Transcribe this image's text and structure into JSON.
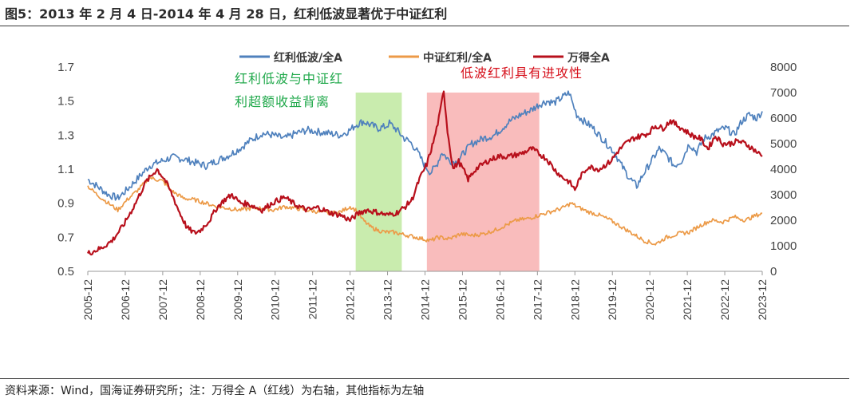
{
  "header": {
    "figure_title": "图5：2013 年 2 月 4 日-2014 年 4 月 28 日，红利低波显著优于中证红利"
  },
  "footer": {
    "source_note": "资料来源：Wind，国海证券研究所；注：万得全 A（红线）为右轴，其他指标为左轴"
  },
  "chart_data": {
    "type": "line",
    "x_ticks": [
      "2005-12",
      "2006-12",
      "2007-12",
      "2008-12",
      "2009-12",
      "2010-12",
      "2011-12",
      "2012-12",
      "2013-12",
      "2014-12",
      "2015-12",
      "2016-12",
      "2017-12",
      "2018-12",
      "2019-12",
      "2020-12",
      "2021-12",
      "2022-12",
      "2023-12"
    ],
    "y_left": {
      "min": 0.5,
      "max": 1.7,
      "ticks": [
        "0.5",
        "0.7",
        "0.9",
        "1.1",
        "1.3",
        "1.5",
        "1.7"
      ]
    },
    "y_right": {
      "min": 0,
      "max": 8000,
      "ticks": [
        "0",
        "1000",
        "2000",
        "3000",
        "4000",
        "5000",
        "6000",
        "7000",
        "8000"
      ]
    },
    "legend_position": "top-center",
    "colors": {
      "dividend_low_vol": "#4f81bd",
      "csi_dividend": "#ec9a47",
      "wind_all_a": "#b8101c",
      "green_band": "#c9ecae",
      "red_band": "#f9bcbc"
    },
    "series": [
      {
        "name": "红利低波/全A",
        "axis": "left",
        "x": [
          2005.95,
          2006.2,
          2006.5,
          2006.75,
          2007.0,
          2007.3,
          2007.6,
          2007.95,
          2008.2,
          2008.5,
          2008.8,
          2009.1,
          2009.4,
          2009.7,
          2010.0,
          2010.3,
          2010.6,
          2010.9,
          2011.2,
          2011.5,
          2011.8,
          2012.1,
          2012.4,
          2012.7,
          2012.95,
          2013.1,
          2013.3,
          2013.5,
          2013.7,
          2013.9,
          2014.0,
          2014.2,
          2014.4,
          2014.55,
          2014.7,
          2014.8,
          2014.95,
          2015.1,
          2015.25,
          2015.4,
          2015.6,
          2015.8,
          2016.0,
          2016.2,
          2016.5,
          2016.8,
          2017.0,
          2017.2,
          2017.5,
          2017.8,
          2018.0,
          2018.2,
          2018.4,
          2018.6,
          2018.8,
          2018.9,
          2019.0,
          2019.2,
          2019.4,
          2019.6,
          2019.8,
          2020.0,
          2020.2,
          2020.4,
          2020.6,
          2020.8,
          2021.0,
          2021.2,
          2021.4,
          2021.6,
          2021.8,
          2022.0,
          2022.2,
          2022.4,
          2022.6,
          2022.8,
          2023.0,
          2023.2,
          2023.4,
          2023.6,
          2023.8,
          2023.95
        ],
        "values": [
          1.04,
          1.0,
          0.95,
          0.93,
          0.98,
          1.05,
          1.12,
          1.15,
          1.17,
          1.16,
          1.14,
          1.12,
          1.15,
          1.18,
          1.22,
          1.27,
          1.31,
          1.3,
          1.28,
          1.31,
          1.33,
          1.32,
          1.31,
          1.3,
          1.33,
          1.36,
          1.38,
          1.36,
          1.34,
          1.35,
          1.37,
          1.33,
          1.28,
          1.26,
          1.22,
          1.18,
          1.12,
          1.08,
          1.12,
          1.2,
          1.15,
          1.14,
          1.2,
          1.25,
          1.28,
          1.3,
          1.34,
          1.38,
          1.42,
          1.45,
          1.48,
          1.5,
          1.49,
          1.52,
          1.55,
          1.48,
          1.42,
          1.38,
          1.35,
          1.3,
          1.25,
          1.2,
          1.12,
          1.05,
          1.0,
          1.08,
          1.15,
          1.22,
          1.18,
          1.12,
          1.15,
          1.25,
          1.2,
          1.28,
          1.3,
          1.33,
          1.34,
          1.3,
          1.38,
          1.42,
          1.4,
          1.44
        ]
      },
      {
        "name": "中证红利/全A",
        "axis": "left",
        "x": [
          2005.95,
          2006.2,
          2006.5,
          2006.75,
          2007.0,
          2007.3,
          2007.6,
          2007.95,
          2008.2,
          2008.5,
          2008.8,
          2009.1,
          2009.4,
          2009.7,
          2010.0,
          2010.3,
          2010.6,
          2010.9,
          2011.2,
          2011.5,
          2011.8,
          2012.1,
          2012.4,
          2012.7,
          2012.95,
          2013.1,
          2013.3,
          2013.5,
          2013.7,
          2013.9,
          2014.1,
          2014.3,
          2014.5,
          2014.7,
          2014.9,
          2015.1,
          2015.3,
          2015.6,
          2015.9,
          2016.2,
          2016.5,
          2016.8,
          2017.1,
          2017.4,
          2017.7,
          2018.0,
          2018.3,
          2018.6,
          2018.85,
          2019.0,
          2019.3,
          2019.6,
          2019.9,
          2020.2,
          2020.5,
          2020.8,
          2021.1,
          2021.4,
          2021.7,
          2022.0,
          2022.3,
          2022.6,
          2022.9,
          2023.2,
          2023.5,
          2023.8,
          2023.95
        ],
        "values": [
          1.0,
          0.95,
          0.9,
          0.86,
          0.92,
          0.98,
          1.05,
          1.03,
          0.97,
          0.93,
          0.92,
          0.9,
          0.88,
          0.87,
          0.86,
          0.87,
          0.87,
          0.86,
          0.88,
          0.87,
          0.86,
          0.85,
          0.84,
          0.85,
          0.88,
          0.86,
          0.8,
          0.76,
          0.74,
          0.73,
          0.73,
          0.72,
          0.71,
          0.7,
          0.69,
          0.68,
          0.7,
          0.69,
          0.72,
          0.71,
          0.72,
          0.74,
          0.77,
          0.8,
          0.81,
          0.83,
          0.85,
          0.87,
          0.9,
          0.88,
          0.85,
          0.83,
          0.8,
          0.76,
          0.72,
          0.68,
          0.66,
          0.7,
          0.72,
          0.73,
          0.77,
          0.8,
          0.79,
          0.82,
          0.8,
          0.83,
          0.84
        ]
      },
      {
        "name": "万得全A",
        "axis": "right",
        "x": [
          2005.95,
          2006.3,
          2006.6,
          2006.9,
          2007.2,
          2007.5,
          2007.8,
          2008.0,
          2008.2,
          2008.4,
          2008.6,
          2008.8,
          2008.95,
          2009.2,
          2009.4,
          2009.6,
          2009.8,
          2010.0,
          2010.3,
          2010.6,
          2010.9,
          2011.2,
          2011.5,
          2011.8,
          2012.1,
          2012.4,
          2012.7,
          2012.95,
          2013.2,
          2013.4,
          2013.7,
          2013.95,
          2014.2,
          2014.4,
          2014.6,
          2014.8,
          2015.0,
          2015.2,
          2015.35,
          2015.45,
          2015.55,
          2015.7,
          2015.85,
          2016.0,
          2016.1,
          2016.3,
          2016.6,
          2016.9,
          2017.2,
          2017.5,
          2017.8,
          2018.0,
          2018.2,
          2018.4,
          2018.6,
          2018.8,
          2018.95,
          2019.1,
          2019.3,
          2019.6,
          2019.9,
          2020.1,
          2020.3,
          2020.5,
          2020.7,
          2020.9,
          2021.1,
          2021.3,
          2021.5,
          2021.7,
          2021.9,
          2022.1,
          2022.3,
          2022.5,
          2022.7,
          2022.9,
          2023.1,
          2023.3,
          2023.5,
          2023.7,
          2023.95
        ],
        "values": [
          700,
          900,
          1200,
          1800,
          2600,
          3500,
          4000,
          3600,
          3000,
          2300,
          1700,
          1500,
          1600,
          2000,
          2500,
          2800,
          3000,
          2700,
          2600,
          2400,
          2700,
          2900,
          2600,
          2400,
          2500,
          2300,
          2200,
          2000,
          2300,
          2400,
          2300,
          2200,
          2300,
          2500,
          2800,
          3600,
          4200,
          5200,
          6200,
          7100,
          5500,
          4000,
          4300,
          3900,
          3600,
          4000,
          4300,
          4500,
          4500,
          4600,
          4800,
          4600,
          4400,
          4000,
          3700,
          3500,
          3200,
          3700,
          4100,
          4000,
          4300,
          4700,
          5000,
          5200,
          5300,
          5400,
          5700,
          5600,
          5900,
          5700,
          5500,
          5300,
          5200,
          4800,
          5300,
          5000,
          5000,
          5100,
          5000,
          4800,
          4500
        ]
      }
    ],
    "highlight_bands": [
      {
        "from": 2013.1,
        "to": 2014.33,
        "color": "green"
      },
      {
        "from": 2015.0,
        "to": 2018.0,
        "color": "red"
      }
    ],
    "annotations": {
      "green_line1": "红利低波与中证红",
      "green_line2": "利超额收益背离",
      "red_text": "低波红利具有进攻性"
    }
  }
}
